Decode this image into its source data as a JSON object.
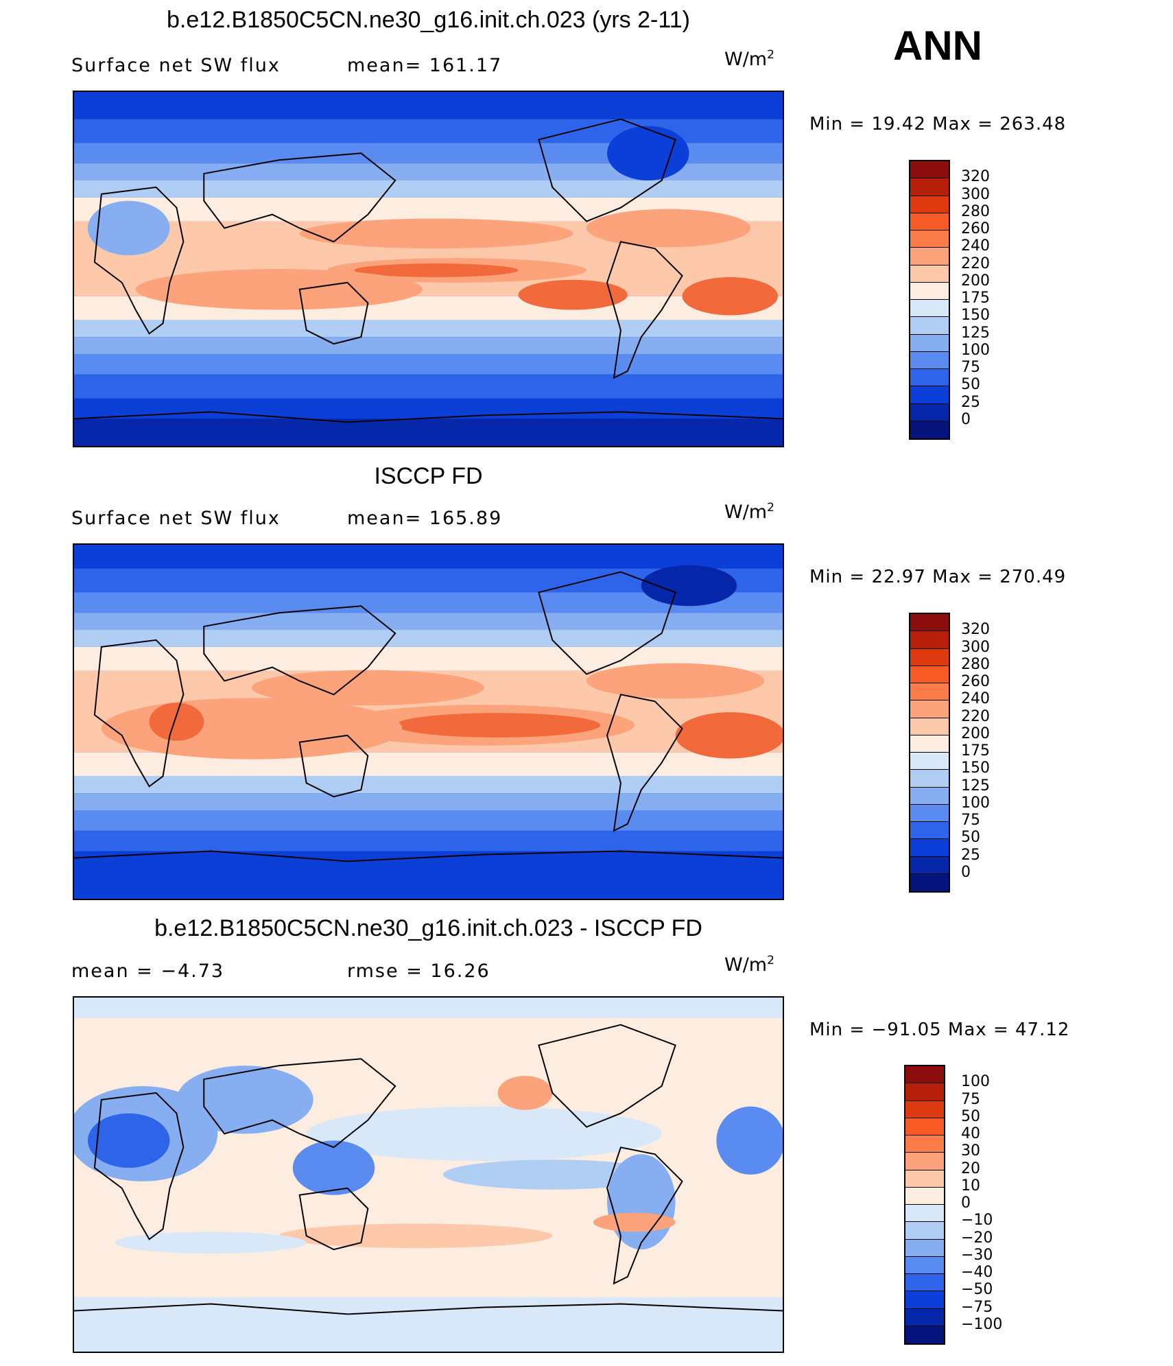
{
  "overall_label": "ANN",
  "panels": [
    {
      "title": "b.e12.B1850C5CN.ne30_g16.init.ch.023 (yrs 2-11)",
      "left_label": "Surface net SW flux",
      "right_label": "mean=  161.17",
      "units_base": "W/m",
      "units_exp": "2",
      "minmax": "Min  =    19.42  Max  =  263.48",
      "colorbar": {
        "labels": [
          "320",
          "300",
          "280",
          "260",
          "240",
          "220",
          "200",
          "175",
          "150",
          "125",
          "100",
          "75",
          "50",
          "25",
          "0"
        ],
        "colors": [
          "#8b0d0d",
          "#b81f0a",
          "#dd3a10",
          "#f75a25",
          "#fb7c48",
          "#fca37b",
          "#fdc9aa",
          "#fdece0",
          "#d8e8f8",
          "#b0cdf4",
          "#86aef1",
          "#5a8bf0",
          "#2e64ea",
          "#0b3fd8",
          "#0627aa",
          "#05147c"
        ]
      },
      "field": "model"
    },
    {
      "title": "ISCCP FD",
      "left_label": "Surface net SW flux",
      "right_label": "mean=  165.89",
      "units_base": "W/m",
      "units_exp": "2",
      "minmax": "Min  =    22.97  Max  =  270.49",
      "colorbar": {
        "labels": [
          "320",
          "300",
          "280",
          "260",
          "240",
          "220",
          "200",
          "175",
          "150",
          "125",
          "100",
          "75",
          "50",
          "25",
          "0"
        ],
        "colors": [
          "#8b0d0d",
          "#b81f0a",
          "#dd3a10",
          "#f75a25",
          "#fb7c48",
          "#fca37b",
          "#fdc9aa",
          "#fdece0",
          "#d8e8f8",
          "#b0cdf4",
          "#86aef1",
          "#5a8bf0",
          "#2e64ea",
          "#0b3fd8",
          "#0627aa",
          "#05147c"
        ]
      },
      "field": "obs"
    },
    {
      "title": "b.e12.B1850C5CN.ne30_g16.init.ch.023 - ISCCP FD",
      "left_label": "mean  =    −4.73",
      "right_label": "rmse  =    16.26",
      "units_base": "W/m",
      "units_exp": "2",
      "minmax": "Min  = −91.05  Max  =    47.12",
      "colorbar": {
        "labels": [
          "100",
          "75",
          "50",
          "40",
          "30",
          "20",
          "10",
          "0",
          "−10",
          "−20",
          "−30",
          "−40",
          "−50",
          "−75",
          "−100"
        ],
        "colors": [
          "#8b0d0d",
          "#b81f0a",
          "#dd3a10",
          "#f75a25",
          "#fb7c48",
          "#fca37b",
          "#fdc9aa",
          "#fdece0",
          "#d8e8f8",
          "#b0cdf4",
          "#86aef1",
          "#5a8bf0",
          "#2e64ea",
          "#0b3fd8",
          "#0627aa",
          "#05147c"
        ]
      },
      "field": "diff"
    }
  ],
  "colors": {
    "red_strong": "#f26a3c",
    "red_mid": "#fca37b",
    "peach": "#fdc9aa",
    "cream": "#fdece0",
    "blue_pale": "#d8e8f8",
    "blue_light": "#b0cdf4",
    "blue_mid": "#86aef1",
    "blue": "#5a8bf0",
    "blue_strong": "#2e64ea",
    "blue_deep": "#0b3fd8",
    "navy": "#0627aa"
  }
}
